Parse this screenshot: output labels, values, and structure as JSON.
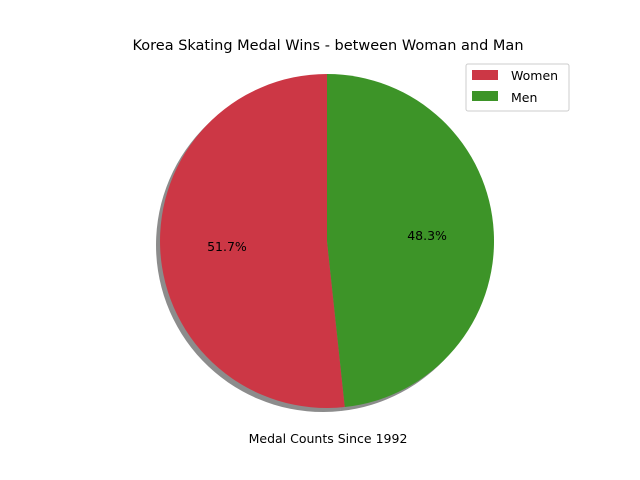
{
  "chart_data": {
    "type": "pie",
    "title": "Korea Skating Medal Wins - between Woman and Man",
    "xlabel": "Medal Counts Since 1992",
    "labels": [
      "Women",
      "Men"
    ],
    "percentages": [
      51.7,
      48.3
    ],
    "percent_labels": [
      "51.7%",
      "48.3%"
    ],
    "colors": [
      "#cc3745",
      "#3d9428"
    ],
    "shadow": true,
    "start_angle_deg": 90,
    "direction": "counterclockwise",
    "legend_placement": "upper-right"
  }
}
